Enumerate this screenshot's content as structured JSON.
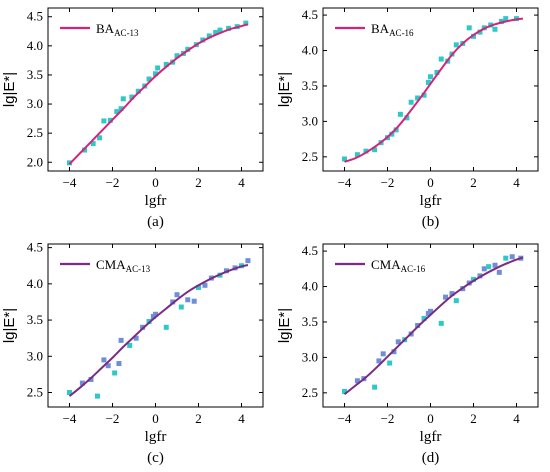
{
  "marker_color": "#2ec8c8",
  "marker_color_alt": "#6e8ed6",
  "panels": [
    {
      "caption": "(a)",
      "legend": {
        "main": "BA",
        "sub": "AC-13"
      },
      "line_color": "#d4237a",
      "chart_data": {
        "type": "scatter",
        "xlabel": "lgfr",
        "ylabel": "lg|E*|",
        "xlim": [
          -5,
          5
        ],
        "ylim": [
          1.85,
          4.65
        ],
        "xticks": [
          -4,
          -2,
          0,
          2,
          4
        ],
        "yticks": [
          2.0,
          2.5,
          3.0,
          3.5,
          4.0,
          4.5
        ],
        "legend_position": "top-left",
        "points": [
          [
            -4.0,
            1.99
          ],
          [
            -3.3,
            2.21
          ],
          [
            -2.9,
            2.32
          ],
          [
            -2.6,
            2.42
          ],
          [
            -2.4,
            2.71
          ],
          [
            -2.1,
            2.72
          ],
          [
            -1.8,
            2.87
          ],
          [
            -1.6,
            2.92
          ],
          [
            -1.5,
            3.09
          ],
          [
            -1.1,
            3.12
          ],
          [
            -0.8,
            3.22
          ],
          [
            -0.5,
            3.31
          ],
          [
            -0.3,
            3.43
          ],
          [
            0.0,
            3.52
          ],
          [
            0.1,
            3.62
          ],
          [
            0.5,
            3.68
          ],
          [
            0.8,
            3.72
          ],
          [
            1.0,
            3.83
          ],
          [
            1.3,
            3.87
          ],
          [
            1.5,
            3.94
          ],
          [
            1.9,
            4.02
          ],
          [
            2.2,
            4.1
          ],
          [
            2.5,
            4.17
          ],
          [
            2.8,
            4.23
          ],
          [
            3.0,
            4.27
          ],
          [
            3.4,
            4.3
          ],
          [
            3.8,
            4.33
          ],
          [
            4.2,
            4.39
          ]
        ],
        "fit_line": [
          [
            -4.0,
            1.97
          ],
          [
            -3.5,
            2.16
          ],
          [
            -3.0,
            2.35
          ],
          [
            -2.5,
            2.54
          ],
          [
            -2.0,
            2.73
          ],
          [
            -1.5,
            2.92
          ],
          [
            -1.0,
            3.12
          ],
          [
            -0.5,
            3.3
          ],
          [
            0.0,
            3.48
          ],
          [
            0.5,
            3.64
          ],
          [
            1.0,
            3.79
          ],
          [
            1.5,
            3.92
          ],
          [
            2.0,
            4.04
          ],
          [
            2.5,
            4.14
          ],
          [
            3.0,
            4.22
          ],
          [
            3.5,
            4.29
          ],
          [
            4.0,
            4.34
          ],
          [
            4.3,
            4.37
          ]
        ]
      }
    },
    {
      "caption": "(b)",
      "legend": {
        "main": "BA",
        "sub": "AC-16"
      },
      "line_color": "#d4237a",
      "chart_data": {
        "type": "scatter",
        "xlabel": "lgfr",
        "ylabel": "lg|E*|",
        "xlim": [
          -5,
          5
        ],
        "ylim": [
          2.3,
          4.6
        ],
        "xticks": [
          -4,
          -2,
          0,
          2,
          4
        ],
        "yticks": [
          2.5,
          3.0,
          3.5,
          4.0,
          4.5
        ],
        "legend_position": "top-left",
        "points": [
          [
            -4.0,
            2.47
          ],
          [
            -3.4,
            2.53
          ],
          [
            -3.0,
            2.58
          ],
          [
            -2.6,
            2.6
          ],
          [
            -2.3,
            2.7
          ],
          [
            -2.0,
            2.77
          ],
          [
            -1.8,
            2.82
          ],
          [
            -1.6,
            2.88
          ],
          [
            -1.4,
            3.1
          ],
          [
            -1.1,
            3.05
          ],
          [
            -0.9,
            3.27
          ],
          [
            -0.6,
            3.33
          ],
          [
            -0.3,
            3.37
          ],
          [
            -0.1,
            3.55
          ],
          [
            0.0,
            3.63
          ],
          [
            0.3,
            3.69
          ],
          [
            0.5,
            3.88
          ],
          [
            0.8,
            3.85
          ],
          [
            1.0,
            3.95
          ],
          [
            1.2,
            4.08
          ],
          [
            1.5,
            4.1
          ],
          [
            1.8,
            4.32
          ],
          [
            2.0,
            4.2
          ],
          [
            2.3,
            4.26
          ],
          [
            2.5,
            4.32
          ],
          [
            2.8,
            4.36
          ],
          [
            3.0,
            4.3
          ],
          [
            3.3,
            4.41
          ],
          [
            3.5,
            4.45
          ],
          [
            4.0,
            4.45
          ]
        ],
        "fit_line": [
          [
            -4.0,
            2.43
          ],
          [
            -3.5,
            2.48
          ],
          [
            -3.0,
            2.56
          ],
          [
            -2.5,
            2.66
          ],
          [
            -2.0,
            2.78
          ],
          [
            -1.5,
            2.93
          ],
          [
            -1.0,
            3.12
          ],
          [
            -0.5,
            3.32
          ],
          [
            0.0,
            3.53
          ],
          [
            0.5,
            3.74
          ],
          [
            1.0,
            3.94
          ],
          [
            1.5,
            4.1
          ],
          [
            2.0,
            4.22
          ],
          [
            2.5,
            4.31
          ],
          [
            3.0,
            4.37
          ],
          [
            3.5,
            4.41
          ],
          [
            4.0,
            4.44
          ],
          [
            4.3,
            4.45
          ]
        ]
      }
    },
    {
      "caption": "(c)",
      "legend": {
        "main": "CMA",
        "sub": "AC-13"
      },
      "line_color": "#7b2a85",
      "chart_data": {
        "type": "scatter",
        "xlabel": "lgfr",
        "ylabel": "lg|E*|",
        "xlim": [
          -5,
          5
        ],
        "ylim": [
          2.3,
          4.55
        ],
        "xticks": [
          -4,
          -2,
          0,
          2,
          4
        ],
        "yticks": [
          2.5,
          3.0,
          3.5,
          4.0,
          4.5
        ],
        "legend_position": "top-left",
        "points": [
          [
            -4.0,
            2.5
          ],
          [
            -3.4,
            2.63
          ],
          [
            -3.0,
            2.68
          ],
          [
            -2.7,
            2.45
          ],
          [
            -2.4,
            2.95
          ],
          [
            -2.2,
            2.87
          ],
          [
            -1.9,
            2.77
          ],
          [
            -1.7,
            2.9
          ],
          [
            -1.6,
            3.22
          ],
          [
            -1.2,
            3.15
          ],
          [
            -0.9,
            3.25
          ],
          [
            -0.6,
            3.4
          ],
          [
            -0.3,
            3.48
          ],
          [
            -0.1,
            3.55
          ],
          [
            0.0,
            3.58
          ],
          [
            0.5,
            3.4
          ],
          [
            0.8,
            3.75
          ],
          [
            1.0,
            3.85
          ],
          [
            1.2,
            3.68
          ],
          [
            1.5,
            3.78
          ],
          [
            1.8,
            3.76
          ],
          [
            2.0,
            3.95
          ],
          [
            2.3,
            3.98
          ],
          [
            2.6,
            4.08
          ],
          [
            3.0,
            4.12
          ],
          [
            3.3,
            4.18
          ],
          [
            3.7,
            4.22
          ],
          [
            4.0,
            4.25
          ],
          [
            4.3,
            4.32
          ]
        ],
        "fit_line": [
          [
            -4.0,
            2.45
          ],
          [
            -3.5,
            2.57
          ],
          [
            -3.0,
            2.7
          ],
          [
            -2.5,
            2.84
          ],
          [
            -2.0,
            2.98
          ],
          [
            -1.5,
            3.13
          ],
          [
            -1.0,
            3.27
          ],
          [
            -0.5,
            3.41
          ],
          [
            0.0,
            3.54
          ],
          [
            0.5,
            3.66
          ],
          [
            1.0,
            3.78
          ],
          [
            1.5,
            3.89
          ],
          [
            2.0,
            3.98
          ],
          [
            2.5,
            4.06
          ],
          [
            3.0,
            4.13
          ],
          [
            3.5,
            4.19
          ],
          [
            4.0,
            4.24
          ],
          [
            4.3,
            4.26
          ]
        ]
      }
    },
    {
      "caption": "(d)",
      "legend": {
        "main": "CMA",
        "sub": "AC-16"
      },
      "line_color": "#7b2a85",
      "chart_data": {
        "type": "scatter",
        "xlabel": "lgfr",
        "ylabel": "lg|E*|",
        "xlim": [
          -5,
          5
        ],
        "ylim": [
          2.3,
          4.6
        ],
        "xticks": [
          -4,
          -2,
          0,
          2,
          4
        ],
        "yticks": [
          2.5,
          3.0,
          3.5,
          4.0,
          4.5
        ],
        "legend_position": "top-left",
        "points": [
          [
            -4.0,
            2.52
          ],
          [
            -3.4,
            2.67
          ],
          [
            -3.1,
            2.7
          ],
          [
            -2.6,
            2.58
          ],
          [
            -2.4,
            2.95
          ],
          [
            -2.2,
            3.05
          ],
          [
            -1.9,
            2.92
          ],
          [
            -1.7,
            3.08
          ],
          [
            -1.5,
            3.22
          ],
          [
            -1.2,
            3.25
          ],
          [
            -0.9,
            3.33
          ],
          [
            -0.6,
            3.45
          ],
          [
            -0.3,
            3.55
          ],
          [
            -0.1,
            3.62
          ],
          [
            0.0,
            3.65
          ],
          [
            0.5,
            3.48
          ],
          [
            0.7,
            3.85
          ],
          [
            1.0,
            3.9
          ],
          [
            1.2,
            3.8
          ],
          [
            1.5,
            3.97
          ],
          [
            1.8,
            4.05
          ],
          [
            2.0,
            4.1
          ],
          [
            2.3,
            4.15
          ],
          [
            2.5,
            4.25
          ],
          [
            2.7,
            4.28
          ],
          [
            3.0,
            4.3
          ],
          [
            3.2,
            4.2
          ],
          [
            3.5,
            4.4
          ],
          [
            3.8,
            4.42
          ],
          [
            4.2,
            4.4
          ]
        ],
        "fit_line": [
          [
            -4.0,
            2.48
          ],
          [
            -3.5,
            2.6
          ],
          [
            -3.0,
            2.72
          ],
          [
            -2.5,
            2.86
          ],
          [
            -2.0,
            3.01
          ],
          [
            -1.5,
            3.16
          ],
          [
            -1.0,
            3.31
          ],
          [
            -0.5,
            3.46
          ],
          [
            0.0,
            3.6
          ],
          [
            0.5,
            3.74
          ],
          [
            1.0,
            3.87
          ],
          [
            1.5,
            3.98
          ],
          [
            2.0,
            4.08
          ],
          [
            2.5,
            4.17
          ],
          [
            3.0,
            4.25
          ],
          [
            3.5,
            4.32
          ],
          [
            4.0,
            4.38
          ],
          [
            4.3,
            4.41
          ]
        ]
      }
    }
  ]
}
